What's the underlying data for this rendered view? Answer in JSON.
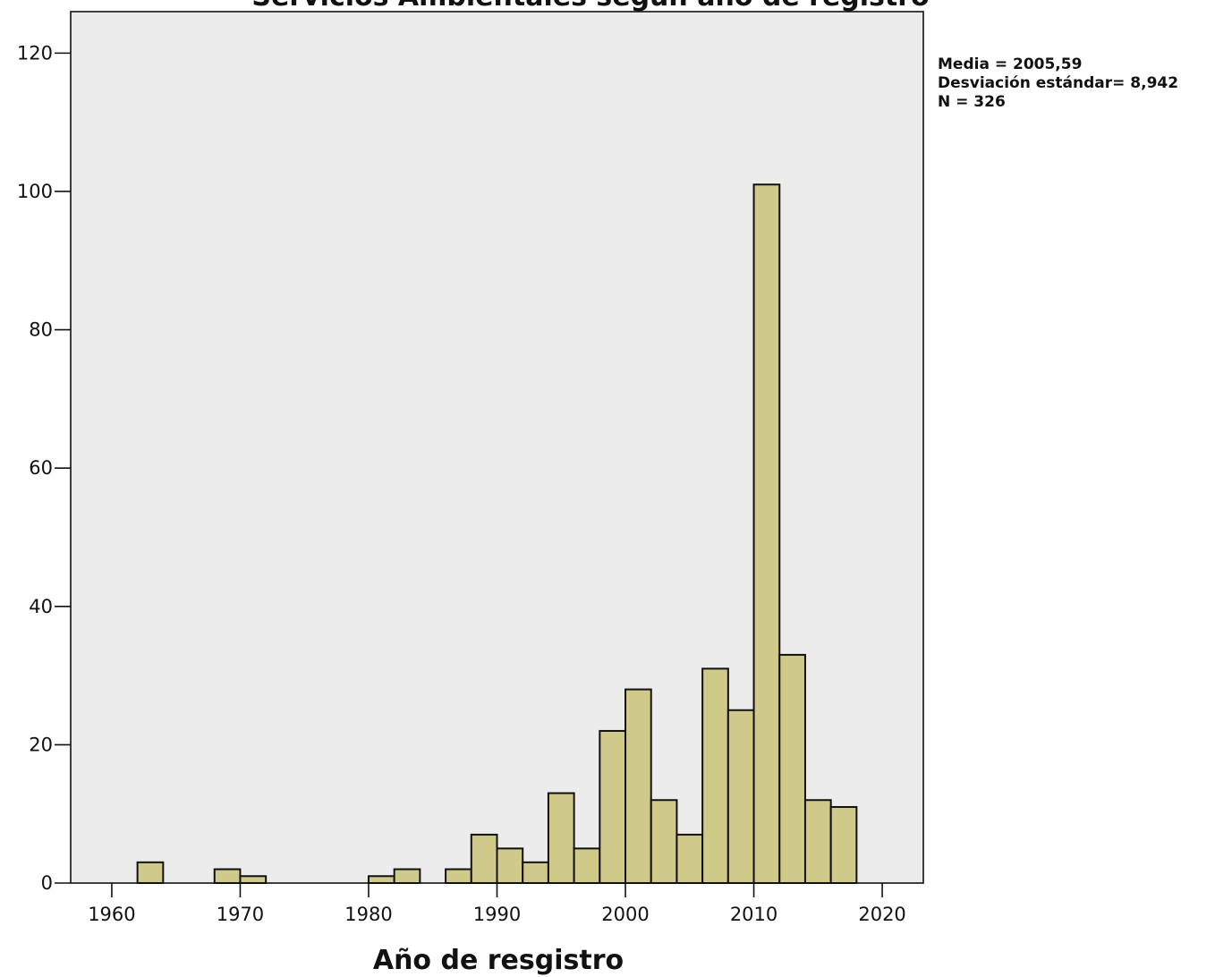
{
  "chart_data": {
    "type": "bar",
    "title": "Servicios Ambientales según año de registro",
    "xlabel": "Año de resgistro",
    "ylabel": "",
    "xlim": [
      1956.8,
      2023.2
    ],
    "ylim": [
      0,
      126
    ],
    "x_ticks": [
      1960,
      1970,
      1980,
      1990,
      2000,
      2010,
      2020
    ],
    "y_ticks": [
      0,
      20,
      40,
      60,
      80,
      100,
      120
    ],
    "bin_width": 2,
    "bin_starts": [
      1962,
      1968,
      1970,
      1980,
      1982,
      1986,
      1988,
      1990,
      1992,
      1994,
      1996,
      1998,
      2000,
      2002,
      2004,
      2006,
      2008,
      2010,
      2012,
      2014,
      2016
    ],
    "values": [
      3,
      2,
      1,
      1,
      2,
      2,
      7,
      5,
      3,
      13,
      5,
      22,
      28,
      12,
      7,
      31,
      25,
      101,
      33,
      12,
      11
    ],
    "stats": [
      "Media = 2005,59",
      "Desviación estándar= 8,942",
      "N = 326"
    ],
    "grid": false,
    "bar_color": "#cfc98a",
    "plot_background": "#ececec"
  }
}
